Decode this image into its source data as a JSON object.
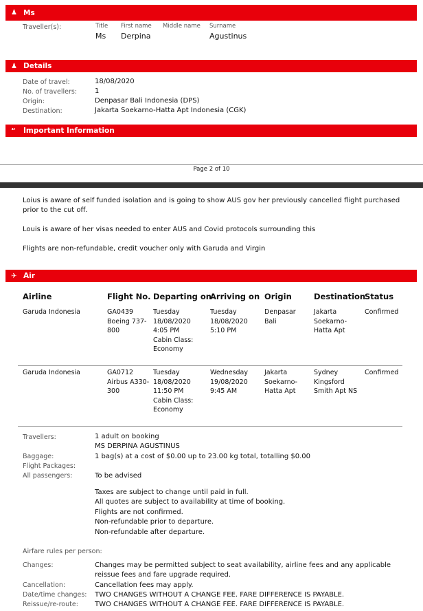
{
  "names_section": {
    "title": "Ms",
    "icon": "person-icon",
    "traveller_label": "Traveller(s):",
    "col_title": "Title",
    "col_first": "First name",
    "col_middle": "Middle name",
    "col_surname": "Surname",
    "first": "Derpina",
    "middle": "",
    "surname": "Agustinus"
  },
  "details": {
    "title": "Details",
    "icon": "person-icon",
    "rows": [
      {
        "label": "Date of travel:",
        "value": "18/08/2020"
      },
      {
        "label": "No. of travellers:",
        "value": "1"
      },
      {
        "label": "Origin:",
        "value": "Denpasar Bali Indonesia (DPS)"
      },
      {
        "label": "Destination:",
        "value": "Jakarta Soekarno-Hatta Apt Indonesia (CGK)"
      }
    ]
  },
  "important": {
    "title": "Important Information",
    "icon": "quote-icon"
  },
  "footer": {
    "page": "Page 2 of 10"
  },
  "notes": [
    "Loius is aware of self funded isolation and is going to show AUS gov her previously cancelled flight purchased",
    "prior to the cut off.",
    "Louis is aware of her visas needed to enter AUS and Covid protocols surrounding this",
    "Flights are non-refundable, credit voucher only with Garuda and Virgin"
  ],
  "air": {
    "title": "Air",
    "icon": "plane-icon",
    "headers": [
      "Airline",
      "Flight No.",
      "Departing on",
      "Arriving on",
      "Origin",
      "Destination",
      "Status"
    ],
    "rows": [
      [
        "Garuda Indonesia",
        "GA0439\nBoeing 737-\n800",
        "Tuesday\n18/08/2020\n4:05 PM\nCabin Class:\nEconomy",
        "Tuesday\n18/08/2020\n5:10 PM",
        "Denpasar\nBali",
        "Jakarta\nSoekarno-\nHatta Apt",
        "Confirmed"
      ],
      [
        "Garuda Indonesia",
        "GA0712\nAirbus A330-\n300",
        "Tuesday\n18/08/2020\n11:50 PM\nCabin Class:\nEconomy",
        "Wednesday\n19/08/2020\n9:45 AM",
        "Jakarta\nSoekarno-\nHatta Apt",
        "Sydney\nKingsford\nSmith Apt NS",
        "Confirmed"
      ]
    ]
  },
  "summary": {
    "travellers_label": "Travellers:",
    "travellers": "1 adult on booking",
    "traveller_name": "MS DERPINA AGUSTINUS",
    "baggage_label": "Baggage:",
    "baggage": "1 bag(s) at a cost of $0.00 up to 23.00 kg total, totalling $0.00",
    "packages_label": "Flight Packages:",
    "all_label": "All passengers:",
    "all": "To be advised",
    "terms": [
      "Taxes are subject to change until paid in full.",
      "All quotes are subject to availability at time of booking.",
      "Flights are not confirmed.",
      "Non-refundable prior to departure.",
      "Non-refundable after departure."
    ],
    "rules_title": "Airfare rules per person:",
    "changes_label": "Changes:",
    "changes": [
      "Changes may be permitted subject to seat availability, airline fees and any applicable",
      "reissue fees and fare upgrade required."
    ],
    "cancel_label": "Cancellation:",
    "cancel": "Cancellation fees may apply.",
    "date_label": "Date/time changes:",
    "date": "TWO CHANGES WITHOUT A CHANGE FEE. FARE DIFFERENCE IS PAYABLE.",
    "reissue_label": "Reissue/re-route:",
    "reissue": "TWO CHANGES WITHOUT A CHANGE FEE. FARE DIFFERENCE IS PAYABLE."
  }
}
